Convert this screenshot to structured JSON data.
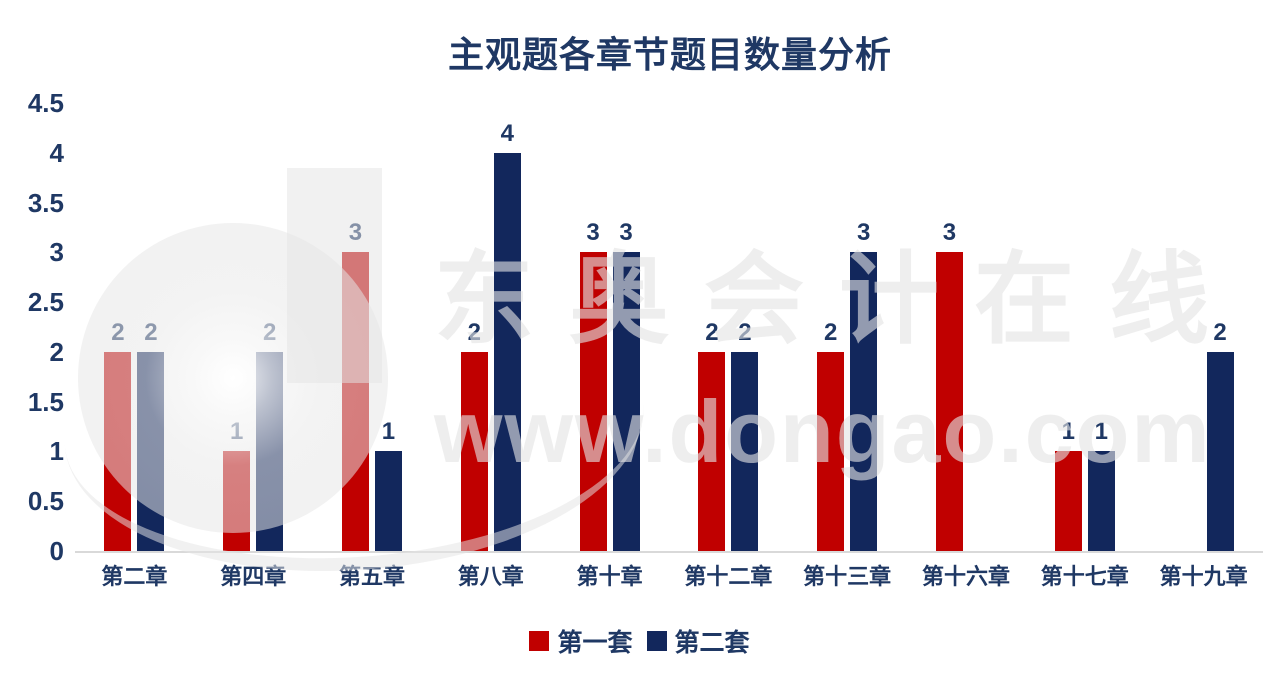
{
  "chart_data": {
    "type": "bar",
    "title": "主观题各章节题目数量分析",
    "categories": [
      "第二章",
      "第四章",
      "第五章",
      "第八章",
      "第十章",
      "第十二章",
      "第十三章",
      "第十六章",
      "第十七章",
      "第十九章"
    ],
    "series": [
      {
        "name": "第一套",
        "color": "#c00000",
        "values": [
          2,
          1,
          3,
          2,
          3,
          2,
          2,
          3,
          1,
          null
        ]
      },
      {
        "name": "第二套",
        "color": "#12275c",
        "values": [
          2,
          2,
          1,
          4,
          3,
          2,
          3,
          null,
          1,
          2
        ]
      }
    ],
    "ylim": [
      0,
      4.5
    ],
    "y_tick_step": 0.5,
    "y_tick_labels": [
      "0",
      "0.5",
      "1",
      "1.5",
      "2",
      "2.5",
      "3",
      "3.5",
      "4",
      "4.5"
    ],
    "grid": false,
    "legend_position": "bottom",
    "colors": {
      "title_text": "#1f3864",
      "axis_text": "#1f3864",
      "bar_label_text": "#1f3864",
      "axis_line": "#d9d9d9",
      "series1": "#c00000",
      "series2": "#12275c"
    }
  },
  "watermark": {
    "logo_name": "dongao-d-logo",
    "text_line1": "东奥会计在线",
    "text_line2": "www.dongao.com"
  }
}
